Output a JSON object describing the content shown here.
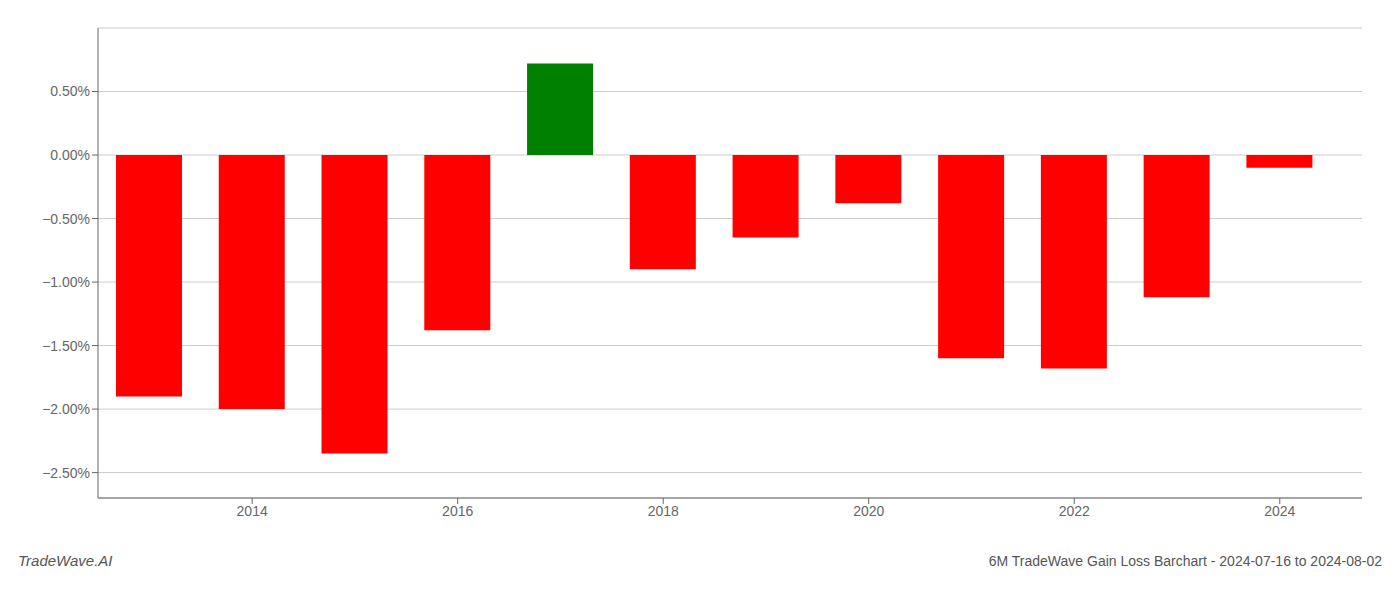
{
  "chart_data": {
    "type": "bar",
    "title": "6M TradeWave Gain Loss Barchart - 2024-07-16 to 2024-08-02",
    "annotations": [
      "TradeWave.AI"
    ],
    "x": [
      2013,
      2014,
      2015,
      2016,
      2017,
      2018,
      2019,
      2020,
      2021,
      2022,
      2023,
      2024
    ],
    "values": [
      -1.9,
      -2.0,
      -2.35,
      -1.38,
      0.72,
      -0.9,
      -0.65,
      -0.38,
      -1.6,
      -1.68,
      -1.12,
      -0.1
    ],
    "colors": [
      "#ff0000",
      "#ff0000",
      "#ff0000",
      "#ff0000",
      "#008000",
      "#ff0000",
      "#ff0000",
      "#ff0000",
      "#ff0000",
      "#ff0000",
      "#ff0000",
      "#ff0000"
    ],
    "xlim": [
      2012.5,
      2024.8
    ],
    "xticks": [
      2014,
      2016,
      2018,
      2020,
      2022,
      2024
    ],
    "ylim": [
      -2.7,
      1.0
    ],
    "yticks": [
      {
        "value": -2.5,
        "label": "−2.50%"
      },
      {
        "value": -2.0,
        "label": "−2.00%"
      },
      {
        "value": -1.5,
        "label": "−1.50%"
      },
      {
        "value": -1.0,
        "label": "−1.00%"
      },
      {
        "value": -0.5,
        "label": "−0.50%"
      },
      {
        "value": 0.0,
        "label": "0.00%"
      },
      {
        "value": 0.5,
        "label": "0.50%"
      }
    ],
    "grid": true
  }
}
